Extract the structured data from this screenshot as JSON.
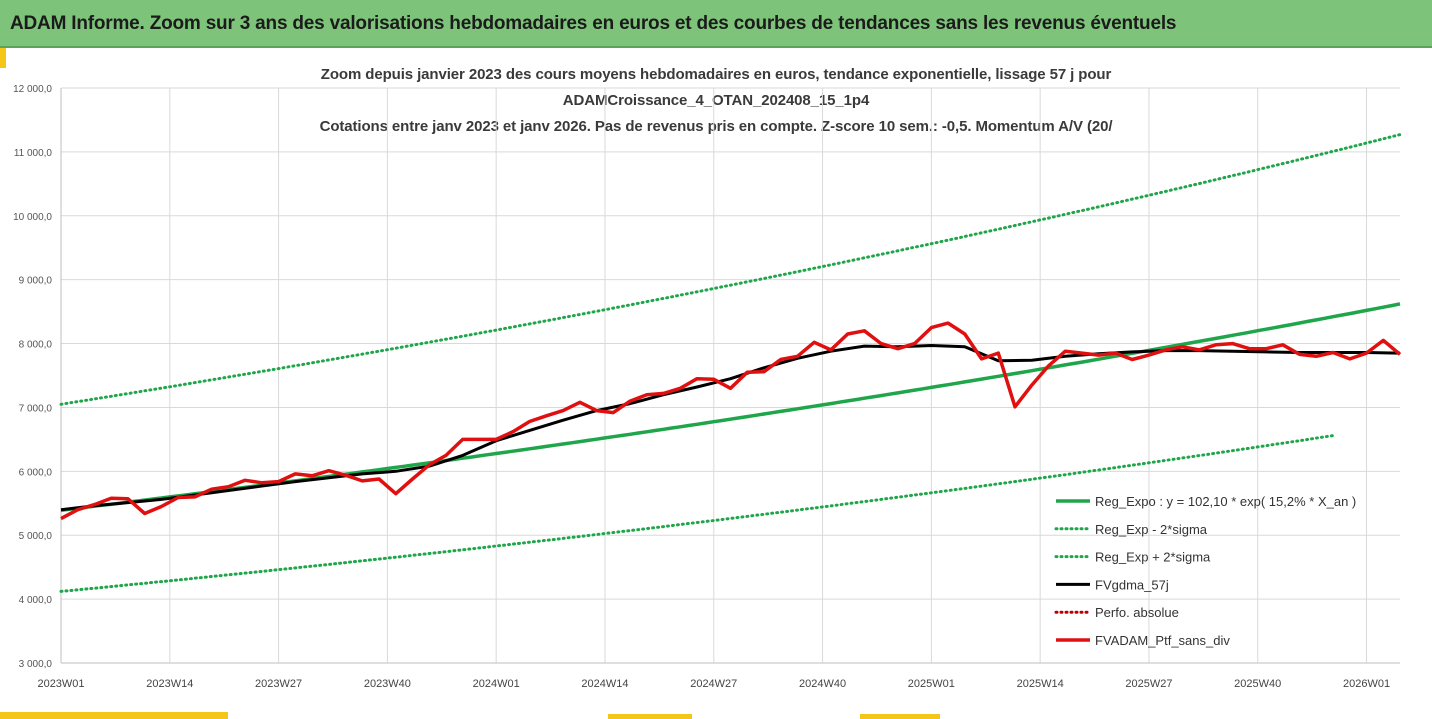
{
  "banner": {
    "title": "ADAM Informe. Zoom sur 3 ans des valorisations hebdomadaires en euros et des courbes de tendances sans les revenus éventuels"
  },
  "colors": {
    "banner": "#7dc47a",
    "accent": "#f5c518",
    "trend": "#1fa64a",
    "smooth": "#000000",
    "portfolio": "#e01010",
    "perfo": "#c00000"
  },
  "chart_data": {
    "type": "line",
    "title_lines": [
      "Zoom depuis janvier 2023 des cours moyens hebdomadaires  en euros, tendance exponentielle, lissage 57 j pour",
      "ADAMCroissance_4_OTAN_202408_15_1p4",
      "Cotations entre janv 2023 et janv 2026. Pas de revenus pris en compte. Z-score 10 sem.: -0,5. Momentum A/V (20/"
    ],
    "x_ticks": [
      "2023W01",
      "2023W14",
      "2023W27",
      "2023W40",
      "2024W01",
      "2024W14",
      "2024W27",
      "2024W40",
      "2025W01",
      "2025W14",
      "2025W27",
      "2025W40",
      "2026W01"
    ],
    "y_ticks": [
      "3 000,0",
      "4 000,0",
      "5 000,0",
      "6 000,0",
      "7 000,0",
      "8 000,0",
      "9 000,0",
      "10 000,0",
      "11 000,0",
      "12 000,0"
    ],
    "ylim": [
      3000,
      12000
    ],
    "xlim_weeks": [
      0,
      160
    ],
    "grid": true,
    "legend_position": "bottom-right",
    "series": [
      {
        "name": "Reg_Expo : y = 102,10 * exp( 15,2% *  X_an )",
        "style": "solid",
        "color": "#1fa64a",
        "x": [
          0,
          160
        ],
        "y": [
          5390,
          8620
        ],
        "exponential": true
      },
      {
        "name": "Reg_Exp - 2*sigma",
        "style": "dotted",
        "color": "#1fa64a",
        "x": [
          0,
          152
        ],
        "y": [
          4120,
          6560
        ],
        "exponential": true
      },
      {
        "name": "Reg_Exp + 2*sigma",
        "style": "dotted",
        "color": "#1fa64a",
        "x": [
          0,
          160
        ],
        "y": [
          7050,
          11270
        ],
        "exponential": true
      },
      {
        "name": "FVgdma_57j",
        "style": "solid",
        "color": "#000000",
        "x": [
          0,
          4,
          8,
          12,
          16,
          20,
          24,
          28,
          32,
          36,
          40,
          44,
          48,
          52,
          56,
          60,
          64,
          68,
          72,
          76,
          80,
          84,
          88,
          92,
          96,
          100,
          104,
          108,
          112,
          116,
          120,
          124,
          128,
          132,
          136,
          140,
          144,
          148,
          152,
          156,
          160
        ],
        "y": [
          5400,
          5460,
          5510,
          5560,
          5630,
          5700,
          5770,
          5840,
          5900,
          5960,
          6000,
          6080,
          6250,
          6480,
          6640,
          6800,
          6950,
          7060,
          7200,
          7320,
          7450,
          7620,
          7770,
          7880,
          7960,
          7950,
          7970,
          7950,
          7730,
          7740,
          7800,
          7840,
          7870,
          7890,
          7890,
          7880,
          7870,
          7860,
          7860,
          7860,
          7850
        ]
      },
      {
        "name": "Perfo. absolue",
        "style": "dotted",
        "color": "#c00000",
        "x": [],
        "y": []
      },
      {
        "name": "FVADAM_Ptf_sans_div",
        "style": "solid",
        "color": "#e01010",
        "x": [
          0,
          2,
          4,
          6,
          8,
          10,
          12,
          14,
          16,
          18,
          20,
          22,
          24,
          26,
          28,
          30,
          32,
          34,
          36,
          38,
          40,
          42,
          44,
          46,
          48,
          50,
          52,
          54,
          56,
          58,
          60,
          62,
          64,
          66,
          68,
          70,
          72,
          74,
          76,
          78,
          80,
          82,
          84,
          86,
          88,
          90,
          92,
          94,
          96,
          98,
          100,
          102,
          104,
          106,
          108,
          110,
          112,
          114,
          116,
          118,
          120,
          122,
          124,
          126,
          128,
          130,
          132,
          134,
          136,
          138,
          140,
          142,
          144,
          146,
          148,
          150,
          152,
          154,
          156,
          158,
          160
        ],
        "y": [
          5260,
          5400,
          5480,
          5580,
          5570,
          5340,
          5450,
          5590,
          5600,
          5720,
          5760,
          5860,
          5820,
          5840,
          5960,
          5930,
          6010,
          5940,
          5850,
          5880,
          5650,
          5880,
          6100,
          6250,
          6500,
          6500,
          6500,
          6620,
          6780,
          6870,
          6950,
          7080,
          6950,
          6920,
          7100,
          7200,
          7220,
          7300,
          7450,
          7440,
          7300,
          7550,
          7560,
          7750,
          7800,
          8020,
          7900,
          8150,
          8200,
          8000,
          7920,
          8000,
          8250,
          8320,
          8150,
          7760,
          7850,
          7010,
          7350,
          7650,
          7880,
          7850,
          7820,
          7850,
          7750,
          7820,
          7900,
          7950,
          7900,
          7980,
          8000,
          7920,
          7920,
          7980,
          7830,
          7800,
          7860,
          7760,
          7850,
          8050,
          7830
        ]
      }
    ]
  }
}
